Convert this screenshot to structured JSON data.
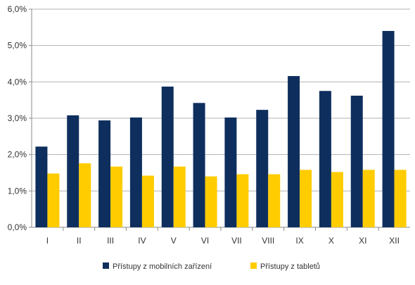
{
  "chart_data": {
    "type": "bar",
    "categories": [
      "I",
      "II",
      "III",
      "IV",
      "V",
      "VI",
      "VII",
      "VIII",
      "IX",
      "X",
      "XI",
      "XII"
    ],
    "series": [
      {
        "name": "Přístupy z mobilních zařízení",
        "color": "#0e2f5e",
        "values": [
          2.22,
          3.08,
          2.94,
          3.02,
          3.87,
          3.42,
          3.02,
          3.23,
          4.16,
          3.75,
          3.62,
          5.4
        ]
      },
      {
        "name": "Přístupy z tabletů",
        "color": "#ffcc00",
        "values": [
          1.48,
          1.76,
          1.67,
          1.42,
          1.67,
          1.4,
          1.46,
          1.46,
          1.58,
          1.52,
          1.58,
          1.58
        ]
      }
    ],
    "yticks": [
      0,
      1,
      2,
      3,
      4,
      5,
      6
    ],
    "ytick_labels": [
      "0,0%",
      "1,0%",
      "2,0%",
      "3,0%",
      "4,0%",
      "5,0%",
      "6,0%"
    ],
    "ylim": [
      0,
      6
    ],
    "grid": true,
    "legend_position": "bottom",
    "title": "",
    "xlabel": "",
    "ylabel": ""
  }
}
